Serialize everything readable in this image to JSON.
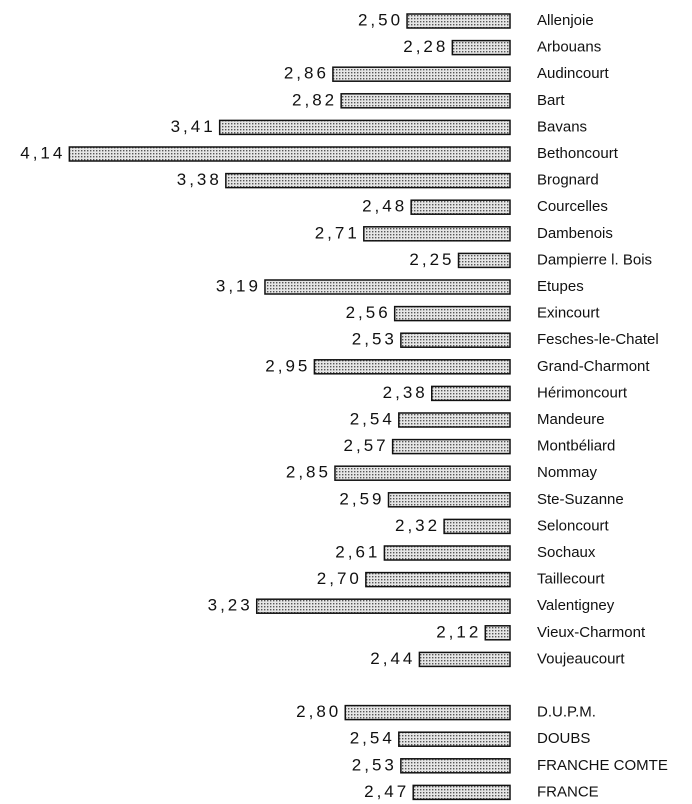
{
  "chart_data": {
    "type": "barh",
    "categories": [
      "Allenjoie",
      "Arbouans",
      "Audincourt",
      "Bart",
      "Bavans",
      "Bethoncourt",
      "Brognard",
      "Courcelles",
      "Dambenois",
      "Dampierre l. Bois",
      "Etupes",
      "Exincourt",
      "Fesches-le-Chatel",
      "Grand-Charmont",
      "Hérimoncourt",
      "Mandeure",
      "Montbéliard",
      "Nommay",
      "Ste-Suzanne",
      "Seloncourt",
      "Sochaux",
      "Taillecourt",
      "Valentigney",
      "Vieux-Charmont",
      "Voujeaucourt",
      null,
      "D.U.P.M.",
      "DOUBS",
      "FRANCHE COMTE",
      "FRANCE"
    ],
    "values": [
      2.5,
      2.28,
      2.86,
      2.82,
      3.41,
      4.14,
      3.38,
      2.48,
      2.71,
      2.25,
      3.19,
      2.56,
      2.53,
      2.95,
      2.38,
      2.54,
      2.57,
      2.85,
      2.59,
      2.32,
      2.61,
      2.7,
      3.23,
      2.12,
      2.44,
      null,
      2.8,
      2.54,
      2.53,
      2.47
    ],
    "value_labels": [
      "2,50",
      "2,28",
      "2,86",
      "2,82",
      "3,41",
      "4,14",
      "3,38",
      "2,48",
      "2,71",
      "2,25",
      "3,19",
      "2,56",
      "2,53",
      "2,95",
      "2,38",
      "2,54",
      "2,57",
      "2,85",
      "2,59",
      "2,32",
      "2,61",
      "2,70",
      "3,23",
      "2,12",
      "2,44",
      null,
      "2,80",
      "2,54",
      "2,53",
      "2,47"
    ],
    "xlim": [
      2,
      4.2
    ],
    "color": "#bdbdbd"
  }
}
